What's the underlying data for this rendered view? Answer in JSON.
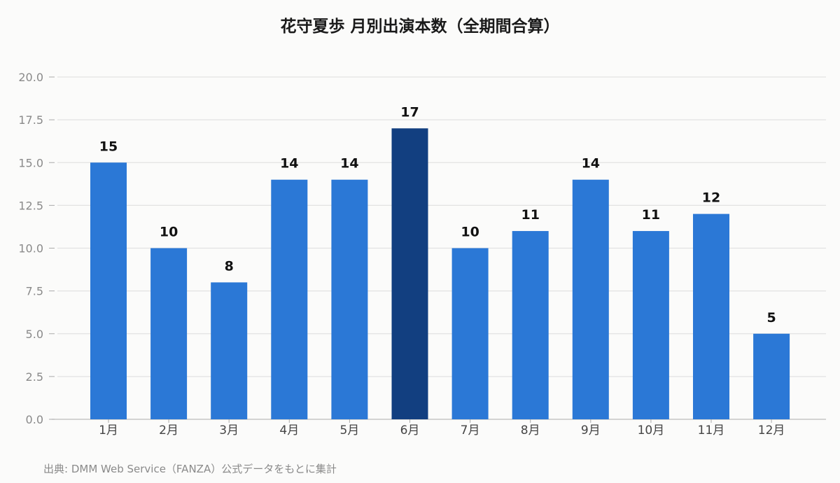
{
  "chart_data": {
    "type": "bar",
    "title": "花守夏歩 月別出演本数（全期間合算）",
    "categories": [
      "1月",
      "2月",
      "3月",
      "4月",
      "5月",
      "6月",
      "7月",
      "8月",
      "9月",
      "10月",
      "11月",
      "12月"
    ],
    "values": [
      15,
      10,
      8,
      14,
      14,
      17,
      10,
      11,
      14,
      11,
      12,
      5
    ],
    "highlight_index": 5,
    "ylim": [
      0,
      20
    ],
    "yticks": [
      "0.0",
      "2.5",
      "5.0",
      "7.5",
      "10.0",
      "12.5",
      "15.0",
      "17.5",
      "20.0"
    ],
    "xlabel": "",
    "ylabel": "",
    "grid": true,
    "colors": {
      "bar": "#2b78d6",
      "highlight": "#123f80",
      "grid": "#e2e2e2",
      "axis": "#bbbbbb"
    },
    "data_labels": true
  },
  "source": "出典: DMM Web Service（FANZA）公式データをもとに集計"
}
